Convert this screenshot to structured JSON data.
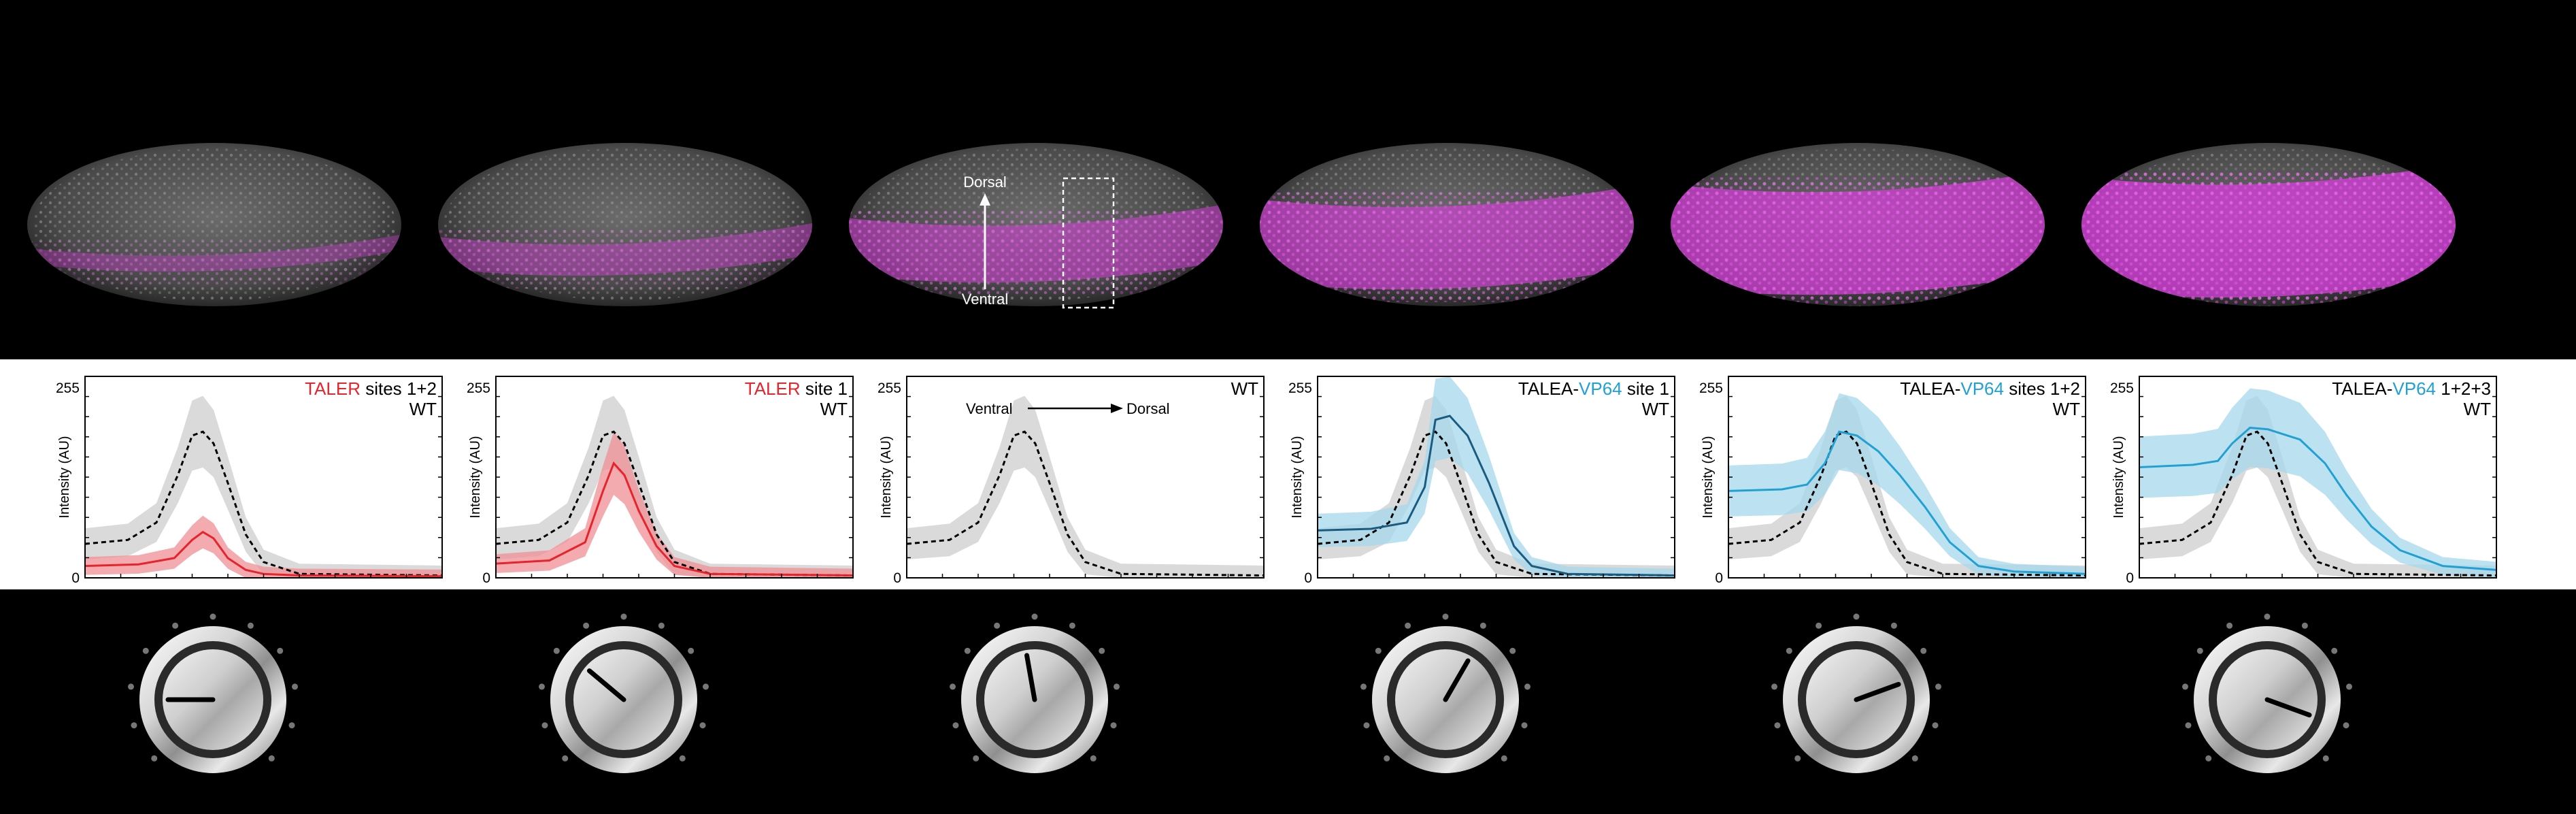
{
  "colors": {
    "magenta": "#d23fd6",
    "taler_red": "#e5242c",
    "taler_band": "#f08f96",
    "vp64_dark": "#1a5b80",
    "vp64_blue": "#21a1d3",
    "vp64_band": "#a5d8ec",
    "wt_band": "#d6d6d6"
  },
  "orientation_labels": {
    "dorsal": "Dorsal",
    "ventral": "Ventral"
  },
  "chart_data": [
    {
      "type": "line",
      "title_colored": "TALER",
      "title_colored_color": "red",
      "title_rest": " sites 1+2",
      "title_line2": "WT",
      "ylabel": "Intensity (AU)",
      "yticks": [
        "255",
        "0"
      ],
      "ylim": [
        0,
        255
      ],
      "xlim": [
        0,
        1
      ],
      "direction_labels": null,
      "series": [
        {
          "name": "WT",
          "x": [
            0,
            0.12,
            0.2,
            0.26,
            0.3,
            0.33,
            0.36,
            0.4,
            0.45,
            0.5,
            0.6,
            1.0
          ],
          "y": [
            43,
            48,
            70,
            130,
            180,
            185,
            170,
            120,
            55,
            20,
            5,
            3
          ]
        },
        {
          "name": "TALER sites 1+2",
          "x": [
            0,
            0.15,
            0.25,
            0.3,
            0.33,
            0.36,
            0.4,
            0.45,
            0.5,
            0.6,
            1.0
          ],
          "y": [
            15,
            17,
            25,
            48,
            58,
            50,
            25,
            10,
            5,
            3,
            2
          ]
        }
      ],
      "knob_level": 0.0
    },
    {
      "type": "line",
      "title_colored": "TALER",
      "title_colored_color": "red",
      "title_rest": " site 1",
      "title_line2": "WT",
      "ylabel": "Intensity (AU)",
      "yticks": [
        "255",
        "0"
      ],
      "ylim": [
        0,
        255
      ],
      "xlim": [
        0,
        1
      ],
      "direction_labels": null,
      "series": [
        {
          "name": "WT",
          "x": [
            0,
            0.12,
            0.2,
            0.26,
            0.3,
            0.33,
            0.36,
            0.4,
            0.45,
            0.5,
            0.6,
            1.0
          ],
          "y": [
            43,
            48,
            70,
            130,
            180,
            185,
            170,
            120,
            55,
            20,
            5,
            3
          ]
        },
        {
          "name": "TALER site 1",
          "x": [
            0,
            0.15,
            0.25,
            0.3,
            0.33,
            0.36,
            0.4,
            0.45,
            0.5,
            0.6,
            1.0
          ],
          "y": [
            18,
            22,
            45,
            110,
            145,
            130,
            85,
            40,
            15,
            5,
            3
          ]
        }
      ],
      "knob_level": 0.2
    },
    {
      "type": "line",
      "title_colored": "",
      "title_colored_color": "",
      "title_rest": "WT",
      "title_line2": "",
      "ylabel": "Intensity (AU)",
      "yticks": [
        "255",
        "0"
      ],
      "ylim": [
        0,
        255
      ],
      "xlim": [
        0,
        1
      ],
      "direction_labels": {
        "left": "Ventral",
        "right": "Dorsal"
      },
      "series": [
        {
          "name": "WT",
          "x": [
            0,
            0.12,
            0.2,
            0.26,
            0.3,
            0.33,
            0.36,
            0.4,
            0.45,
            0.5,
            0.6,
            1.0
          ],
          "y": [
            43,
            48,
            70,
            130,
            180,
            185,
            170,
            120,
            55,
            20,
            5,
            3
          ]
        }
      ],
      "knob_level": 0.4
    },
    {
      "type": "line",
      "title_colored": "VP64",
      "title_colored_color": "blue",
      "title_prefix": "TALEA-",
      "title_rest": " site 1",
      "title_line2": "WT",
      "ylabel": "Intensity (AU)",
      "yticks": [
        "255",
        "0"
      ],
      "ylim": [
        0,
        255
      ],
      "xlim": [
        0,
        1
      ],
      "direction_labels": null,
      "series": [
        {
          "name": "WT",
          "x": [
            0,
            0.12,
            0.2,
            0.26,
            0.3,
            0.33,
            0.36,
            0.4,
            0.45,
            0.5,
            0.6,
            1.0
          ],
          "y": [
            43,
            48,
            70,
            130,
            180,
            185,
            170,
            120,
            55,
            20,
            5,
            3
          ]
        },
        {
          "name": "TALEA-VP64 site 1",
          "x": [
            0,
            0.15,
            0.25,
            0.3,
            0.33,
            0.37,
            0.42,
            0.48,
            0.55,
            0.6,
            0.7,
            1.0
          ],
          "y": [
            60,
            62,
            70,
            115,
            200,
            205,
            180,
            120,
            40,
            15,
            5,
            3
          ]
        }
      ],
      "knob_level": 0.6
    },
    {
      "type": "line",
      "title_colored": "VP64",
      "title_colored_color": "blue",
      "title_prefix": "TALEA-",
      "title_rest": " sites 1+2",
      "title_line2": "WT",
      "ylabel": "Intensity (AU)",
      "yticks": [
        "255",
        "0"
      ],
      "ylim": [
        0,
        255
      ],
      "xlim": [
        0,
        1
      ],
      "direction_labels": null,
      "series": [
        {
          "name": "WT",
          "x": [
            0,
            0.12,
            0.2,
            0.26,
            0.3,
            0.33,
            0.36,
            0.4,
            0.45,
            0.5,
            0.6,
            1.0
          ],
          "y": [
            43,
            48,
            70,
            130,
            180,
            185,
            170,
            120,
            55,
            20,
            5,
            3
          ]
        },
        {
          "name": "TALEA-VP64 sites 1+2",
          "x": [
            0,
            0.15,
            0.22,
            0.27,
            0.31,
            0.36,
            0.42,
            0.48,
            0.55,
            0.62,
            0.7,
            0.8,
            1.0
          ],
          "y": [
            110,
            112,
            118,
            145,
            185,
            180,
            160,
            130,
            90,
            45,
            15,
            8,
            5
          ]
        }
      ],
      "knob_level": 0.8
    },
    {
      "type": "line",
      "title_colored": "VP64",
      "title_colored_color": "blue",
      "title_prefix": "TALEA-",
      "title_rest": " 1+2+3",
      "title_line2": "WT",
      "ylabel": "Intensity (AU)",
      "yticks": [
        "255",
        "0"
      ],
      "ylim": [
        0,
        255
      ],
      "xlim": [
        0,
        1
      ],
      "direction_labels": null,
      "series": [
        {
          "name": "WT",
          "x": [
            0,
            0.12,
            0.2,
            0.26,
            0.3,
            0.33,
            0.36,
            0.4,
            0.45,
            0.5,
            0.6,
            1.0
          ],
          "y": [
            43,
            48,
            70,
            130,
            180,
            185,
            170,
            120,
            55,
            20,
            5,
            3
          ]
        },
        {
          "name": "TALEA-VP64 1+2+3",
          "x": [
            0,
            0.15,
            0.22,
            0.26,
            0.31,
            0.36,
            0.45,
            0.52,
            0.58,
            0.65,
            0.73,
            0.85,
            1.0
          ],
          "y": [
            140,
            143,
            148,
            170,
            190,
            188,
            175,
            145,
            105,
            65,
            35,
            15,
            10
          ]
        }
      ],
      "knob_level": 1.0
    }
  ]
}
